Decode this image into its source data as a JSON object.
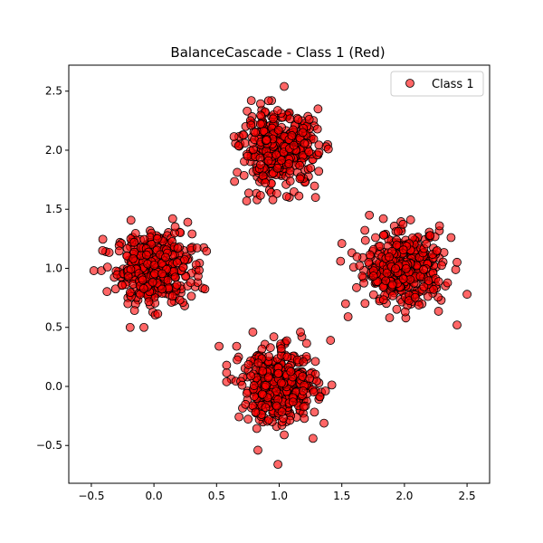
{
  "chart_data": {
    "type": "scatter",
    "title": "BalanceCascade - Class 1 (Red)",
    "xlabel": "",
    "ylabel": "",
    "xlim": [
      -0.68,
      2.68
    ],
    "ylim": [
      -0.82,
      2.72
    ],
    "x_ticks": [
      -0.5,
      0.0,
      0.5,
      1.0,
      1.5,
      2.0,
      2.5
    ],
    "y_ticks": [
      -0.5,
      0.0,
      0.5,
      1.0,
      1.5,
      2.0,
      2.5
    ],
    "x_tick_labels": [
      "−0.5",
      "0.0",
      "0.5",
      "1.0",
      "1.5",
      "2.0",
      "2.5"
    ],
    "y_tick_labels": [
      "−0.5",
      "0.0",
      "0.5",
      "1.0",
      "1.5",
      "2.0",
      "2.5"
    ],
    "grid": false,
    "legend_position": "top-right",
    "series": [
      {
        "name": "Class 1",
        "color": "#ff0000",
        "edge_color": "#000000",
        "alpha": 0.6,
        "clusters": [
          {
            "center": [
              0.0,
              1.0
            ],
            "std": 0.15,
            "n": 420
          },
          {
            "center": [
              1.0,
              2.0
            ],
            "std": 0.15,
            "n": 420
          },
          {
            "center": [
              2.0,
              1.0
            ],
            "std": 0.15,
            "n": 420
          },
          {
            "center": [
              1.0,
              0.0
            ],
            "std": 0.15,
            "n": 420
          }
        ],
        "outliers": [
          [
            -0.48,
            0.98
          ],
          [
            -0.41,
            1.15
          ],
          [
            -0.19,
            0.5
          ],
          [
            -0.08,
            0.5
          ],
          [
            0.27,
            1.39
          ],
          [
            0.74,
            1.57
          ],
          [
            1.29,
            1.6
          ],
          [
            1.31,
            2.35
          ],
          [
            1.04,
            2.54
          ],
          [
            1.5,
            1.21
          ],
          [
            1.49,
            1.06
          ],
          [
            1.53,
            0.7
          ],
          [
            1.55,
            0.59
          ],
          [
            2.28,
            1.36
          ],
          [
            2.5,
            0.78
          ],
          [
            2.42,
            0.52
          ],
          [
            1.72,
            1.45
          ],
          [
            0.52,
            0.34
          ],
          [
            0.66,
            0.34
          ],
          [
            1.41,
            0.39
          ],
          [
            0.79,
            0.46
          ],
          [
            1.17,
            0.46
          ],
          [
            0.99,
            -0.66
          ],
          [
            0.83,
            -0.54
          ],
          [
            1.04,
            -0.41
          ],
          [
            1.27,
            -0.44
          ]
        ]
      }
    ]
  }
}
